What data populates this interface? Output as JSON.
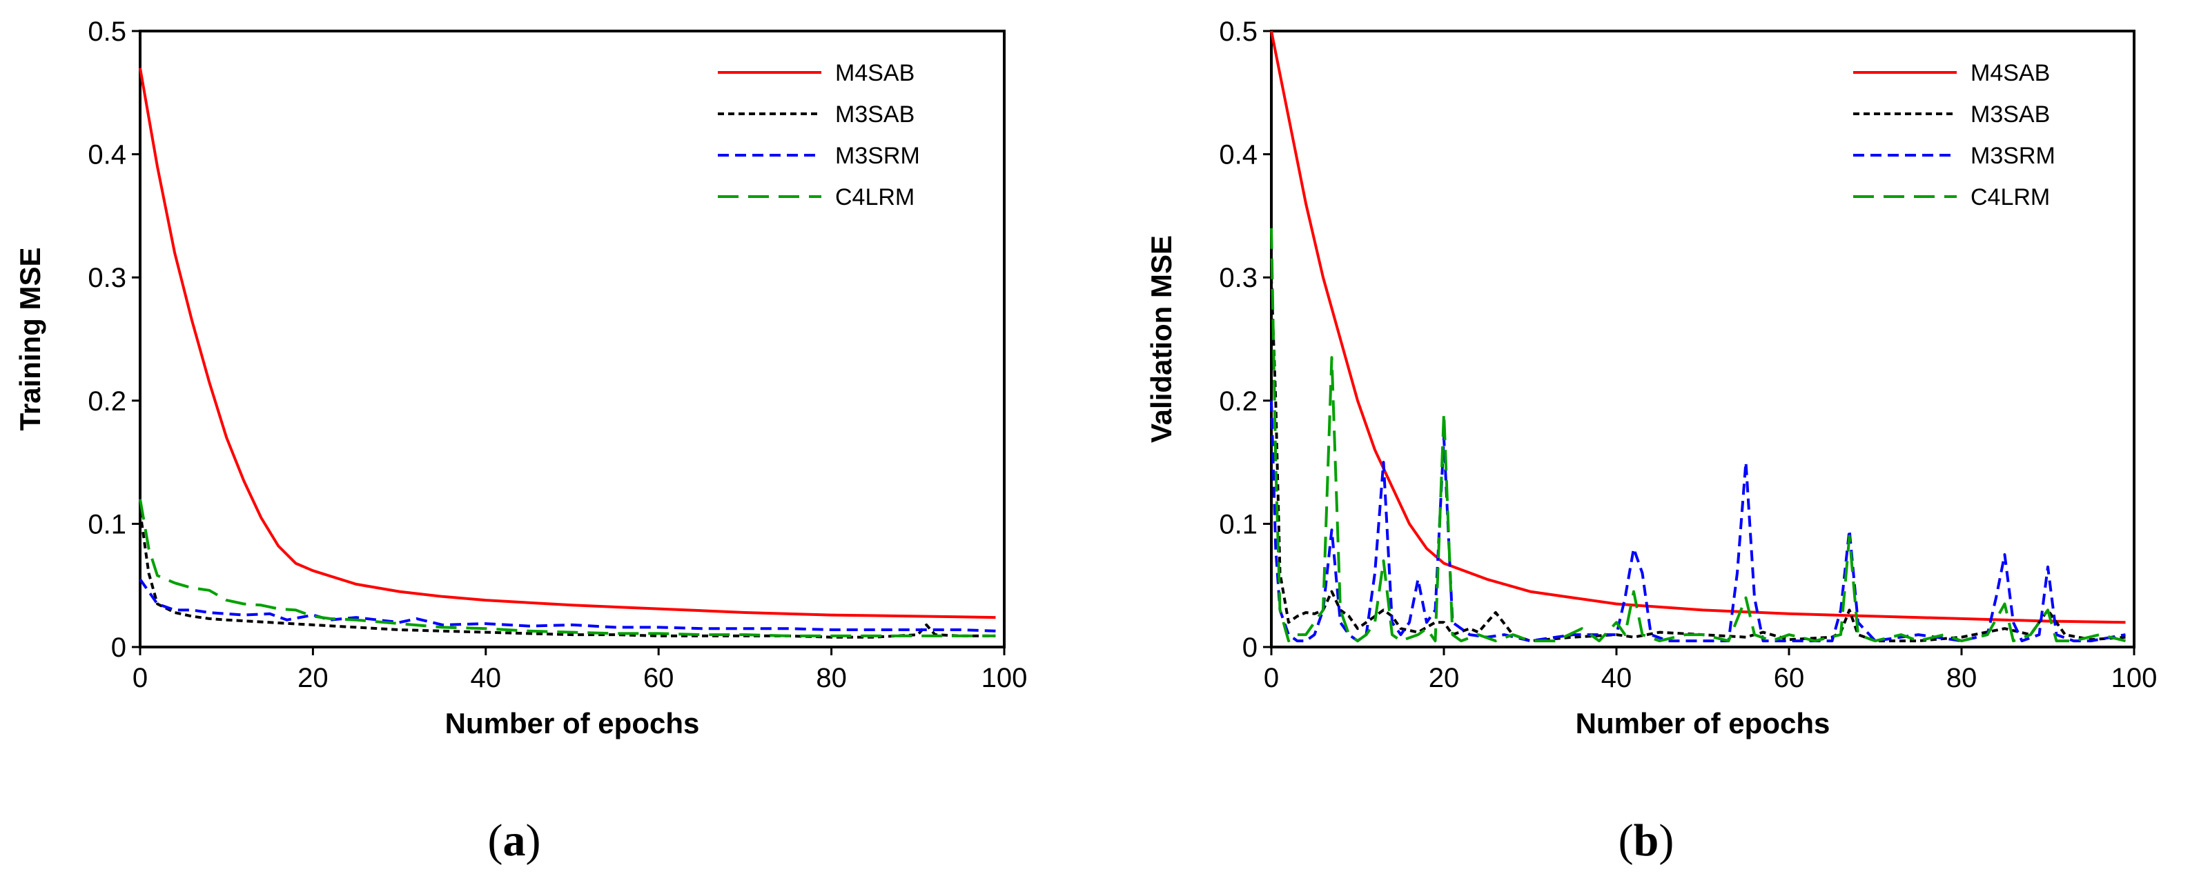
{
  "chart_data": [
    {
      "type": "line",
      "caption_open": "(",
      "caption_letter": "a",
      "caption_close": ")",
      "xlabel": "Number of epochs",
      "ylabel": "Training MSE",
      "xlim": [
        0,
        100
      ],
      "ylim": [
        0,
        0.5
      ],
      "xticks": [
        0,
        20,
        40,
        60,
        80,
        100
      ],
      "yticks": [
        0,
        0.1,
        0.2,
        0.3,
        0.4,
        0.5
      ],
      "yticklabels": [
        "0",
        "0.1",
        "0.2",
        "0.3",
        "0.4",
        "0.5"
      ],
      "legend_position": "top-right",
      "series": [
        {
          "name": "M4SAB",
          "color": "#ff0000",
          "dash": "solid",
          "x": [
            0,
            2,
            4,
            6,
            8,
            10,
            12,
            14,
            16,
            18,
            20,
            25,
            30,
            35,
            40,
            50,
            60,
            70,
            80,
            90,
            99
          ],
          "y": [
            0.47,
            0.39,
            0.32,
            0.265,
            0.215,
            0.17,
            0.135,
            0.105,
            0.082,
            0.068,
            0.062,
            0.051,
            0.045,
            0.041,
            0.038,
            0.034,
            0.031,
            0.028,
            0.026,
            0.025,
            0.024
          ]
        },
        {
          "name": "M3SAB",
          "color": "#000000",
          "dash": "short",
          "x": [
            0,
            1,
            2,
            4,
            6,
            8,
            10,
            15,
            20,
            25,
            30,
            35,
            40,
            45,
            50,
            55,
            60,
            65,
            70,
            75,
            80,
            85,
            90,
            91,
            92,
            95,
            99
          ],
          "y": [
            0.11,
            0.06,
            0.035,
            0.028,
            0.025,
            0.023,
            0.022,
            0.02,
            0.018,
            0.016,
            0.014,
            0.013,
            0.012,
            0.011,
            0.01,
            0.01,
            0.009,
            0.009,
            0.009,
            0.009,
            0.008,
            0.008,
            0.01,
            0.018,
            0.01,
            0.009,
            0.009
          ]
        },
        {
          "name": "M3SRM",
          "color": "#0000ff",
          "dash": "medium",
          "x": [
            0,
            1,
            2,
            4,
            6,
            8,
            10,
            12,
            15,
            17,
            20,
            22,
            25,
            30,
            32,
            35,
            40,
            45,
            50,
            55,
            60,
            65,
            70,
            75,
            80,
            85,
            90,
            95,
            99
          ],
          "y": [
            0.055,
            0.045,
            0.035,
            0.03,
            0.03,
            0.028,
            0.027,
            0.026,
            0.027,
            0.022,
            0.026,
            0.022,
            0.024,
            0.02,
            0.023,
            0.018,
            0.019,
            0.017,
            0.018,
            0.016,
            0.016,
            0.015,
            0.015,
            0.015,
            0.014,
            0.014,
            0.014,
            0.014,
            0.013
          ]
        },
        {
          "name": "C4LRM",
          "color": "#00a000",
          "dash": "long",
          "x": [
            0,
            1,
            2,
            4,
            6,
            8,
            10,
            12,
            14,
            16,
            18,
            20,
            22,
            25,
            30,
            35,
            40,
            45,
            50,
            55,
            60,
            65,
            70,
            75,
            80,
            85,
            90,
            95,
            99
          ],
          "y": [
            0.12,
            0.08,
            0.058,
            0.052,
            0.048,
            0.046,
            0.038,
            0.035,
            0.034,
            0.031,
            0.03,
            0.025,
            0.023,
            0.022,
            0.019,
            0.016,
            0.015,
            0.013,
            0.012,
            0.011,
            0.011,
            0.01,
            0.01,
            0.009,
            0.009,
            0.009,
            0.009,
            0.009,
            0.009
          ]
        }
      ]
    },
    {
      "type": "line",
      "caption_open": "(",
      "caption_letter": "b",
      "caption_close": ")",
      "xlabel": "Number of epochs",
      "ylabel": "Validation MSE",
      "xlim": [
        0,
        100
      ],
      "ylim": [
        0,
        0.5
      ],
      "xticks": [
        0,
        20,
        40,
        60,
        80,
        100
      ],
      "yticks": [
        0,
        0.1,
        0.2,
        0.3,
        0.4,
        0.5
      ],
      "yticklabels": [
        "0",
        "0.1",
        "0.2",
        "0.3",
        "0.4",
        "0.5"
      ],
      "legend_position": "top-right",
      "series": [
        {
          "name": "M4SAB",
          "color": "#ff0000",
          "dash": "solid",
          "x": [
            0,
            2,
            4,
            6,
            8,
            10,
            12,
            14,
            16,
            18,
            20,
            25,
            30,
            35,
            40,
            50,
            60,
            70,
            80,
            90,
            99
          ],
          "y": [
            0.5,
            0.43,
            0.36,
            0.3,
            0.25,
            0.2,
            0.16,
            0.13,
            0.1,
            0.08,
            0.068,
            0.055,
            0.045,
            0.04,
            0.035,
            0.03,
            0.027,
            0.025,
            0.023,
            0.021,
            0.02
          ]
        },
        {
          "name": "M3SAB",
          "color": "#000000",
          "dash": "short",
          "x": [
            0,
            0.5,
            1,
            2,
            3,
            4,
            5,
            6,
            7,
            8,
            9,
            10,
            11,
            12,
            13,
            14,
            15,
            17,
            19,
            20,
            21,
            23,
            24,
            26,
            28,
            30,
            35,
            40,
            42,
            45,
            50,
            55,
            57,
            60,
            65,
            66,
            67,
            68,
            70,
            75,
            80,
            85,
            88,
            90,
            92,
            95,
            99
          ],
          "y": [
            0.3,
            0.2,
            0.06,
            0.02,
            0.025,
            0.028,
            0.027,
            0.03,
            0.045,
            0.03,
            0.025,
            0.015,
            0.02,
            0.025,
            0.03,
            0.025,
            0.015,
            0.012,
            0.02,
            0.02,
            0.01,
            0.015,
            0.012,
            0.028,
            0.01,
            0.005,
            0.008,
            0.01,
            0.008,
            0.012,
            0.01,
            0.008,
            0.012,
            0.006,
            0.008,
            0.012,
            0.03,
            0.01,
            0.005,
            0.005,
            0.008,
            0.015,
            0.01,
            0.03,
            0.01,
            0.006,
            0.008
          ]
        },
        {
          "name": "M3SRM",
          "color": "#0000ff",
          "dash": "medium",
          "x": [
            0,
            0.5,
            1,
            2,
            3,
            4,
            5,
            6,
            7,
            8,
            9,
            10,
            11,
            12,
            13,
            14,
            15,
            16,
            17,
            18,
            19,
            20,
            21,
            23,
            25,
            27,
            30,
            35,
            40,
            41,
            42,
            43,
            44,
            46,
            50,
            53,
            54,
            55,
            56,
            57,
            60,
            65,
            66,
            67,
            68,
            70,
            75,
            80,
            83,
            84,
            85,
            86,
            87,
            89,
            90,
            91,
            93,
            95,
            99
          ],
          "y": [
            0.2,
            0.08,
            0.03,
            0.01,
            0.005,
            0.005,
            0.01,
            0.03,
            0.095,
            0.02,
            0.01,
            0.005,
            0.01,
            0.06,
            0.15,
            0.02,
            0.01,
            0.02,
            0.055,
            0.02,
            0.03,
            0.17,
            0.02,
            0.01,
            0.008,
            0.01,
            0.005,
            0.01,
            0.01,
            0.04,
            0.08,
            0.06,
            0.01,
            0.005,
            0.005,
            0.005,
            0.06,
            0.15,
            0.04,
            0.005,
            0.005,
            0.005,
            0.03,
            0.095,
            0.02,
            0.005,
            0.01,
            0.005,
            0.01,
            0.04,
            0.075,
            0.02,
            0.005,
            0.01,
            0.065,
            0.01,
            0.005,
            0.005,
            0.01
          ]
        },
        {
          "name": "C4LRM",
          "color": "#00a000",
          "dash": "long",
          "x": [
            0,
            0.5,
            1,
            2,
            3,
            4,
            5,
            6,
            7,
            8,
            9,
            10,
            11,
            12,
            13,
            14,
            15,
            17,
            18,
            19,
            20,
            21,
            22,
            24,
            26,
            28,
            30,
            33,
            36,
            38,
            40,
            41,
            42,
            43,
            45,
            48,
            50,
            53,
            55,
            56,
            58,
            60,
            63,
            66,
            67,
            68,
            70,
            73,
            75,
            78,
            80,
            83,
            85,
            86,
            88,
            90,
            91,
            93,
            96,
            99
          ],
          "y": [
            0.34,
            0.15,
            0.03,
            0.005,
            0.01,
            0.01,
            0.02,
            0.03,
            0.235,
            0.03,
            0.01,
            0.005,
            0.01,
            0.02,
            0.07,
            0.01,
            0.005,
            0.01,
            0.015,
            0.005,
            0.19,
            0.01,
            0.005,
            0.01,
            0.005,
            0.01,
            0.005,
            0.005,
            0.015,
            0.005,
            0.02,
            0.01,
            0.045,
            0.01,
            0.005,
            0.01,
            0.01,
            0.005,
            0.04,
            0.01,
            0.005,
            0.01,
            0.005,
            0.01,
            0.09,
            0.01,
            0.005,
            0.01,
            0.005,
            0.01,
            0.005,
            0.01,
            0.035,
            0.005,
            0.01,
            0.03,
            0.005,
            0.005,
            0.01,
            0.005
          ]
        }
      ]
    }
  ]
}
